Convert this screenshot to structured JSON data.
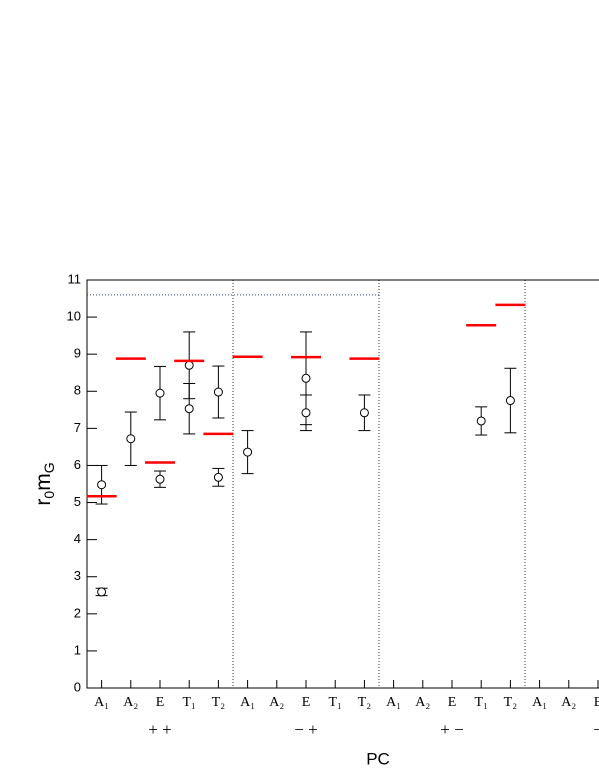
{
  "chart_data": {
    "type": "errorbar",
    "y_label": [
      "r",
      "0",
      "m",
      "G"
    ],
    "x_label": "PC",
    "categories": [
      "A₁",
      "A₂",
      "E",
      "T₁",
      "T₂",
      "A₁",
      "A₂",
      "E",
      "T₁",
      "T₂",
      "A₁",
      "A₂",
      "E",
      "T₁",
      "T₂",
      "A₁",
      "A₂",
      "E"
    ],
    "group_labels": [
      "+ +",
      "− +",
      "+ −",
      "−"
    ],
    "ylim": [
      0,
      11
    ],
    "yticks": [
      0,
      1,
      2,
      3,
      4,
      5,
      6,
      7,
      8,
      9,
      10,
      11
    ],
    "reference_line": {
      "value": 10.6,
      "color": "#3a3ad0"
    },
    "series": [
      {
        "marker": "circle",
        "color": "#000000",
        "values": [
          5.48,
          6.72,
          7.95,
          8.7,
          7.98,
          6.36,
          null,
          8.35,
          null,
          7.42,
          null,
          null,
          null,
          7.2,
          7.75,
          null,
          null,
          null
        ],
        "errors": [
          0.52,
          0.72,
          0.72,
          0.9,
          0.7,
          0.58,
          null,
          1.25,
          null,
          0.48,
          null,
          null,
          null,
          0.38,
          0.87,
          null,
          null,
          null
        ]
      },
      {
        "marker": "circle",
        "color": "#000000",
        "values": [
          2.59,
          null,
          5.63,
          7.53,
          5.68,
          null,
          null,
          7.42,
          null,
          null,
          null,
          null,
          null,
          null,
          null,
          null,
          null,
          null
        ],
        "errors": [
          0.1,
          null,
          0.22,
          0.68,
          0.24,
          null,
          null,
          0.48,
          null,
          null,
          null,
          null,
          null,
          null,
          null,
          null,
          null,
          null
        ]
      },
      {
        "marker": "dash",
        "color": "#ff0000",
        "values": [
          5.17,
          8.88,
          6.08,
          8.82,
          6.85,
          8.93,
          null,
          8.92,
          null,
          8.88,
          null,
          null,
          null,
          9.78,
          10.33,
          null,
          null,
          null
        ]
      }
    ]
  }
}
